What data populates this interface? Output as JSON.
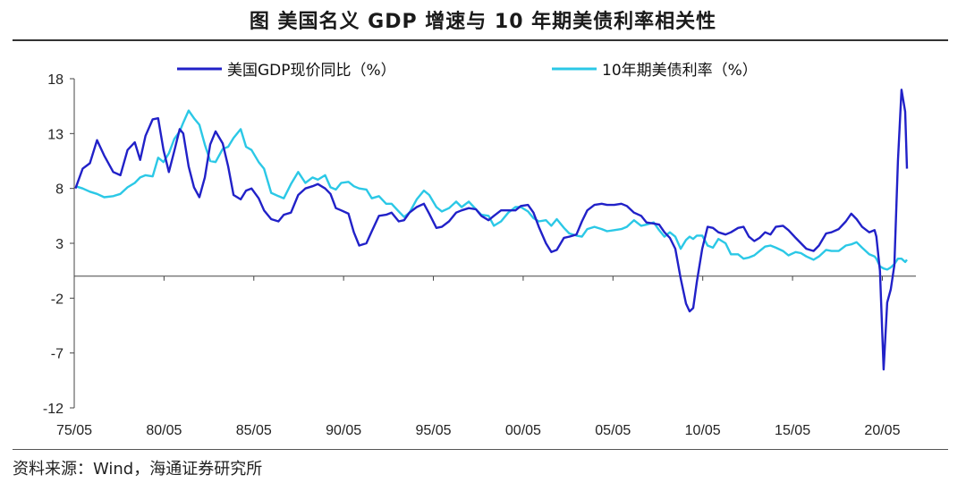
{
  "figure": {
    "title": "图  美国名义 GDP 增速与 10 年期美债利率相关性",
    "source": "资料来源：Wind，海通证券研究所"
  },
  "chart_data": {
    "type": "line",
    "title": "图  美国名义 GDP 增速与 10 年期美债利率相关性",
    "xlabel": "",
    "ylabel": "",
    "ylim": [
      -12,
      18
    ],
    "yticks": [
      18,
      13,
      8,
      3,
      -2,
      -7,
      -12
    ],
    "ytick_labels": [
      "18",
      "13",
      "8",
      "3",
      "-2",
      "-7",
      "-12"
    ],
    "xlim": [
      1975.33,
      2022.2
    ],
    "xticks": [
      1975.33,
      1980.33,
      1985.33,
      1990.33,
      1995.33,
      2000.33,
      2005.33,
      2010.33,
      2015.33,
      2020.33
    ],
    "xtick_labels": [
      "75/05",
      "80/05",
      "85/05",
      "90/05",
      "95/05",
      "00/05",
      "05/05",
      "10/05",
      "15/05",
      "20/05"
    ],
    "zero_line": 0,
    "legend_position": "top",
    "series": [
      {
        "name": "美国GDP现价同比（%）",
        "color": "#2121c8",
        "points": [
          [
            1975.4,
            8.0
          ],
          [
            1975.8,
            9.8
          ],
          [
            1976.2,
            10.3
          ],
          [
            1976.6,
            12.4
          ],
          [
            1977.0,
            11.0
          ],
          [
            1977.5,
            9.5
          ],
          [
            1977.9,
            9.2
          ],
          [
            1978.3,
            11.5
          ],
          [
            1978.7,
            12.2
          ],
          [
            1979.0,
            10.6
          ],
          [
            1979.3,
            12.8
          ],
          [
            1979.7,
            14.3
          ],
          [
            1980.0,
            14.4
          ],
          [
            1980.3,
            11.5
          ],
          [
            1980.6,
            9.5
          ],
          [
            1980.9,
            11.4
          ],
          [
            1981.2,
            13.4
          ],
          [
            1981.4,
            13.0
          ],
          [
            1981.7,
            10.0
          ],
          [
            1982.0,
            8.1
          ],
          [
            1982.3,
            7.2
          ],
          [
            1982.6,
            9.0
          ],
          [
            1982.9,
            12.0
          ],
          [
            1983.2,
            13.2
          ],
          [
            1983.6,
            12.1
          ],
          [
            1983.9,
            10.0
          ],
          [
            1984.2,
            7.4
          ],
          [
            1984.6,
            7.0
          ],
          [
            1984.9,
            7.8
          ],
          [
            1985.2,
            8.0
          ],
          [
            1985.6,
            7.1
          ],
          [
            1985.9,
            6.0
          ],
          [
            1986.3,
            5.2
          ],
          [
            1986.7,
            5.0
          ],
          [
            1987.0,
            5.6
          ],
          [
            1987.4,
            5.8
          ],
          [
            1987.8,
            7.4
          ],
          [
            1988.2,
            8.0
          ],
          [
            1988.6,
            8.2
          ],
          [
            1988.9,
            8.4
          ],
          [
            1989.3,
            8.0
          ],
          [
            1989.6,
            7.5
          ],
          [
            1989.9,
            6.2
          ],
          [
            1990.2,
            6.0
          ],
          [
            1990.6,
            5.7
          ],
          [
            1990.9,
            4.0
          ],
          [
            1991.2,
            2.8
          ],
          [
            1991.6,
            3.0
          ],
          [
            1991.9,
            4.1
          ],
          [
            1992.3,
            5.5
          ],
          [
            1992.7,
            5.6
          ],
          [
            1993.0,
            5.8
          ],
          [
            1993.4,
            5.0
          ],
          [
            1993.7,
            5.1
          ],
          [
            1994.0,
            5.8
          ],
          [
            1994.4,
            6.3
          ],
          [
            1994.8,
            6.6
          ],
          [
            1995.1,
            5.7
          ],
          [
            1995.5,
            4.4
          ],
          [
            1995.8,
            4.5
          ],
          [
            1996.2,
            5.0
          ],
          [
            1996.6,
            5.8
          ],
          [
            1996.9,
            6.0
          ],
          [
            1997.3,
            6.2
          ],
          [
            1997.7,
            6.1
          ],
          [
            1998.0,
            5.5
          ],
          [
            1998.4,
            5.1
          ],
          [
            1998.7,
            5.5
          ],
          [
            1999.1,
            6.0
          ],
          [
            1999.5,
            6.0
          ],
          [
            1999.9,
            6.0
          ],
          [
            2000.2,
            6.4
          ],
          [
            2000.6,
            6.5
          ],
          [
            2000.9,
            5.8
          ],
          [
            2001.2,
            4.5
          ],
          [
            2001.6,
            3.0
          ],
          [
            2001.9,
            2.2
          ],
          [
            2002.2,
            2.4
          ],
          [
            2002.6,
            3.5
          ],
          [
            2002.9,
            3.6
          ],
          [
            2003.3,
            3.8
          ],
          [
            2003.6,
            5.0
          ],
          [
            2003.9,
            6.0
          ],
          [
            2004.3,
            6.5
          ],
          [
            2004.7,
            6.6
          ],
          [
            2005.0,
            6.5
          ],
          [
            2005.4,
            6.5
          ],
          [
            2005.8,
            6.6
          ],
          [
            2006.1,
            6.4
          ],
          [
            2006.5,
            5.8
          ],
          [
            2006.9,
            5.5
          ],
          [
            2007.2,
            4.9
          ],
          [
            2007.6,
            4.8
          ],
          [
            2007.9,
            4.7
          ],
          [
            2008.2,
            4.0
          ],
          [
            2008.5,
            3.5
          ],
          [
            2008.8,
            2.5
          ],
          [
            2009.1,
            -0.2
          ],
          [
            2009.4,
            -2.5
          ],
          [
            2009.6,
            -3.2
          ],
          [
            2009.8,
            -2.9
          ],
          [
            2010.0,
            -0.5
          ],
          [
            2010.3,
            2.5
          ],
          [
            2010.6,
            4.5
          ],
          [
            2010.9,
            4.4
          ],
          [
            2011.2,
            4.0
          ],
          [
            2011.6,
            3.8
          ],
          [
            2011.9,
            4.0
          ],
          [
            2012.3,
            4.4
          ],
          [
            2012.6,
            4.5
          ],
          [
            2012.9,
            3.6
          ],
          [
            2013.2,
            3.2
          ],
          [
            2013.5,
            3.5
          ],
          [
            2013.8,
            4.0
          ],
          [
            2014.1,
            3.8
          ],
          [
            2014.4,
            4.5
          ],
          [
            2014.8,
            4.6
          ],
          [
            2015.1,
            4.2
          ],
          [
            2015.5,
            3.5
          ],
          [
            2015.8,
            3.0
          ],
          [
            2016.1,
            2.5
          ],
          [
            2016.5,
            2.3
          ],
          [
            2016.8,
            2.8
          ],
          [
            2017.2,
            3.9
          ],
          [
            2017.5,
            4.0
          ],
          [
            2017.9,
            4.3
          ],
          [
            2018.3,
            5.0
          ],
          [
            2018.6,
            5.7
          ],
          [
            2018.9,
            5.2
          ],
          [
            2019.2,
            4.5
          ],
          [
            2019.6,
            4.0
          ],
          [
            2019.9,
            4.2
          ],
          [
            2020.0,
            3.6
          ],
          [
            2020.2,
            0.5
          ],
          [
            2020.4,
            -8.5
          ],
          [
            2020.6,
            -2.4
          ],
          [
            2020.8,
            -1.2
          ],
          [
            2021.0,
            1.0
          ],
          [
            2021.2,
            10.5
          ],
          [
            2021.4,
            17.0
          ],
          [
            2021.6,
            15.0
          ],
          [
            2021.7,
            9.8
          ]
        ]
      },
      {
        "name": "10年期美债利率（%）",
        "color": "#2bc8e6",
        "points": [
          [
            1975.4,
            8.2
          ],
          [
            1975.8,
            8.0
          ],
          [
            1976.2,
            7.7
          ],
          [
            1976.6,
            7.5
          ],
          [
            1977.0,
            7.2
          ],
          [
            1977.5,
            7.3
          ],
          [
            1977.9,
            7.5
          ],
          [
            1978.3,
            8.1
          ],
          [
            1978.7,
            8.5
          ],
          [
            1979.0,
            9.0
          ],
          [
            1979.3,
            9.2
          ],
          [
            1979.7,
            9.1
          ],
          [
            1980.0,
            10.8
          ],
          [
            1980.3,
            10.4
          ],
          [
            1980.6,
            11.2
          ],
          [
            1980.9,
            12.5
          ],
          [
            1981.2,
            13.2
          ],
          [
            1981.4,
            14.0
          ],
          [
            1981.7,
            15.1
          ],
          [
            1982.0,
            14.4
          ],
          [
            1982.3,
            13.8
          ],
          [
            1982.6,
            12.0
          ],
          [
            1982.9,
            10.5
          ],
          [
            1983.2,
            10.4
          ],
          [
            1983.6,
            11.6
          ],
          [
            1983.9,
            11.8
          ],
          [
            1984.2,
            12.6
          ],
          [
            1984.6,
            13.4
          ],
          [
            1984.9,
            11.8
          ],
          [
            1985.2,
            11.5
          ],
          [
            1985.6,
            10.4
          ],
          [
            1985.9,
            9.8
          ],
          [
            1986.3,
            7.6
          ],
          [
            1986.7,
            7.3
          ],
          [
            1987.0,
            7.1
          ],
          [
            1987.4,
            8.4
          ],
          [
            1987.8,
            9.5
          ],
          [
            1988.2,
            8.5
          ],
          [
            1988.6,
            9.0
          ],
          [
            1988.9,
            8.8
          ],
          [
            1989.3,
            9.2
          ],
          [
            1989.6,
            8.1
          ],
          [
            1989.9,
            7.9
          ],
          [
            1990.2,
            8.5
          ],
          [
            1990.6,
            8.6
          ],
          [
            1990.9,
            8.2
          ],
          [
            1991.2,
            8.0
          ],
          [
            1991.6,
            7.9
          ],
          [
            1991.9,
            7.1
          ],
          [
            1992.3,
            7.3
          ],
          [
            1992.7,
            6.6
          ],
          [
            1993.0,
            6.6
          ],
          [
            1993.4,
            5.9
          ],
          [
            1993.7,
            5.4
          ],
          [
            1994.0,
            5.8
          ],
          [
            1994.4,
            7.0
          ],
          [
            1994.8,
            7.8
          ],
          [
            1995.1,
            7.4
          ],
          [
            1995.5,
            6.3
          ],
          [
            1995.8,
            5.9
          ],
          [
            1996.2,
            6.2
          ],
          [
            1996.6,
            6.8
          ],
          [
            1996.9,
            6.3
          ],
          [
            1997.3,
            6.8
          ],
          [
            1997.7,
            6.1
          ],
          [
            1998.0,
            5.6
          ],
          [
            1998.4,
            5.5
          ],
          [
            1998.7,
            4.6
          ],
          [
            1999.1,
            5.0
          ],
          [
            1999.5,
            5.8
          ],
          [
            1999.9,
            6.3
          ],
          [
            2000.2,
            6.3
          ],
          [
            2000.6,
            5.9
          ],
          [
            2000.9,
            5.3
          ],
          [
            2001.2,
            5.0
          ],
          [
            2001.6,
            5.1
          ],
          [
            2001.9,
            4.6
          ],
          [
            2002.2,
            5.2
          ],
          [
            2002.6,
            4.4
          ],
          [
            2002.9,
            3.9
          ],
          [
            2003.3,
            3.7
          ],
          [
            2003.6,
            3.6
          ],
          [
            2003.9,
            4.3
          ],
          [
            2004.3,
            4.5
          ],
          [
            2004.7,
            4.3
          ],
          [
            2005.0,
            4.1
          ],
          [
            2005.4,
            4.2
          ],
          [
            2005.8,
            4.3
          ],
          [
            2006.1,
            4.5
          ],
          [
            2006.5,
            5.1
          ],
          [
            2006.9,
            4.6
          ],
          [
            2007.2,
            4.7
          ],
          [
            2007.6,
            4.9
          ],
          [
            2007.9,
            4.2
          ],
          [
            2008.2,
            3.6
          ],
          [
            2008.5,
            4.0
          ],
          [
            2008.8,
            3.6
          ],
          [
            2009.1,
            2.5
          ],
          [
            2009.4,
            3.3
          ],
          [
            2009.6,
            3.6
          ],
          [
            2009.8,
            3.4
          ],
          [
            2010.0,
            3.7
          ],
          [
            2010.3,
            3.7
          ],
          [
            2010.6,
            2.8
          ],
          [
            2010.9,
            2.6
          ],
          [
            2011.2,
            3.4
          ],
          [
            2011.6,
            3.0
          ],
          [
            2011.9,
            2.0
          ],
          [
            2012.3,
            2.0
          ],
          [
            2012.6,
            1.6
          ],
          [
            2012.9,
            1.7
          ],
          [
            2013.2,
            1.9
          ],
          [
            2013.5,
            2.3
          ],
          [
            2013.8,
            2.7
          ],
          [
            2014.1,
            2.8
          ],
          [
            2014.4,
            2.6
          ],
          [
            2014.8,
            2.3
          ],
          [
            2015.1,
            1.9
          ],
          [
            2015.5,
            2.2
          ],
          [
            2015.8,
            2.1
          ],
          [
            2016.1,
            1.8
          ],
          [
            2016.5,
            1.5
          ],
          [
            2016.8,
            1.8
          ],
          [
            2017.2,
            2.4
          ],
          [
            2017.5,
            2.3
          ],
          [
            2017.9,
            2.3
          ],
          [
            2018.3,
            2.8
          ],
          [
            2018.6,
            2.9
          ],
          [
            2018.9,
            3.1
          ],
          [
            2019.2,
            2.6
          ],
          [
            2019.6,
            2.0
          ],
          [
            2019.9,
            1.8
          ],
          [
            2020.0,
            1.6
          ],
          [
            2020.2,
            0.9
          ],
          [
            2020.4,
            0.7
          ],
          [
            2020.6,
            0.6
          ],
          [
            2020.8,
            0.8
          ],
          [
            2021.0,
            1.1
          ],
          [
            2021.2,
            1.6
          ],
          [
            2021.4,
            1.6
          ],
          [
            2021.6,
            1.3
          ],
          [
            2021.7,
            1.5
          ]
        ]
      }
    ]
  }
}
